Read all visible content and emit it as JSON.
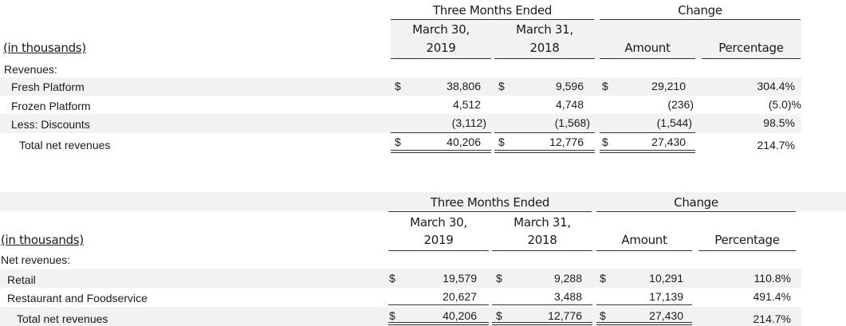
{
  "table1": {
    "header": {
      "group": "Three Months Ended",
      "change": "Change",
      "col1_line1": "March 30,",
      "col1_line2": "2019",
      "col2_line1": "March 31,",
      "col2_line2": "2018",
      "amount": "Amount",
      "percentage": "Percentage",
      "units": "(in thousands)"
    },
    "section_label": "Revenues:",
    "rows": [
      {
        "label": "Fresh Platform",
        "d1": "$",
        "v1": "38,806",
        "d2": "$",
        "v2": "9,596",
        "d3": "$",
        "amt": "29,210",
        "pct": "304.4%"
      },
      {
        "label": "Frozen Platform",
        "d1": "",
        "v1": "4,512",
        "d2": "",
        "v2": "4,748",
        "d3": "",
        "amt": "(236)",
        "pct": "(5.0)%"
      },
      {
        "label": "Less: Discounts",
        "d1": "",
        "v1": "(3,112)",
        "d2": "",
        "v2": "(1,568)",
        "d3": "",
        "amt": "(1,544)",
        "pct": "98.5%"
      },
      {
        "label": "Total net revenues",
        "d1": "$",
        "v1": "40,206",
        "d2": "$",
        "v2": "12,776",
        "d3": "$",
        "amt": "27,430",
        "pct": "214.7%"
      }
    ]
  },
  "table2": {
    "header": {
      "group": "Three Months Ended",
      "change": "Change",
      "col1_line1": "March 30,",
      "col1_line2": "2019",
      "col2_line1": "March 31,",
      "col2_line2": "2018",
      "amount": "Amount",
      "percentage": "Percentage",
      "units": "(in thousands)"
    },
    "section_label": "Net revenues:",
    "rows": [
      {
        "label": "Retail",
        "d1": "$",
        "v1": "19,579",
        "d2": "$",
        "v2": "9,288",
        "d3": "$",
        "amt": "10,291",
        "pct": "110.8%"
      },
      {
        "label": "Restaurant and Foodservice",
        "d1": "",
        "v1": "20,627",
        "d2": "",
        "v2": "3,488",
        "d3": "",
        "amt": "17,139",
        "pct": "491.4%"
      },
      {
        "label": "Total net revenues",
        "d1": "$",
        "v1": "40,206",
        "d2": "$",
        "v2": "12,776",
        "d3": "$",
        "amt": "27,430",
        "pct": "214.7%"
      }
    ]
  }
}
